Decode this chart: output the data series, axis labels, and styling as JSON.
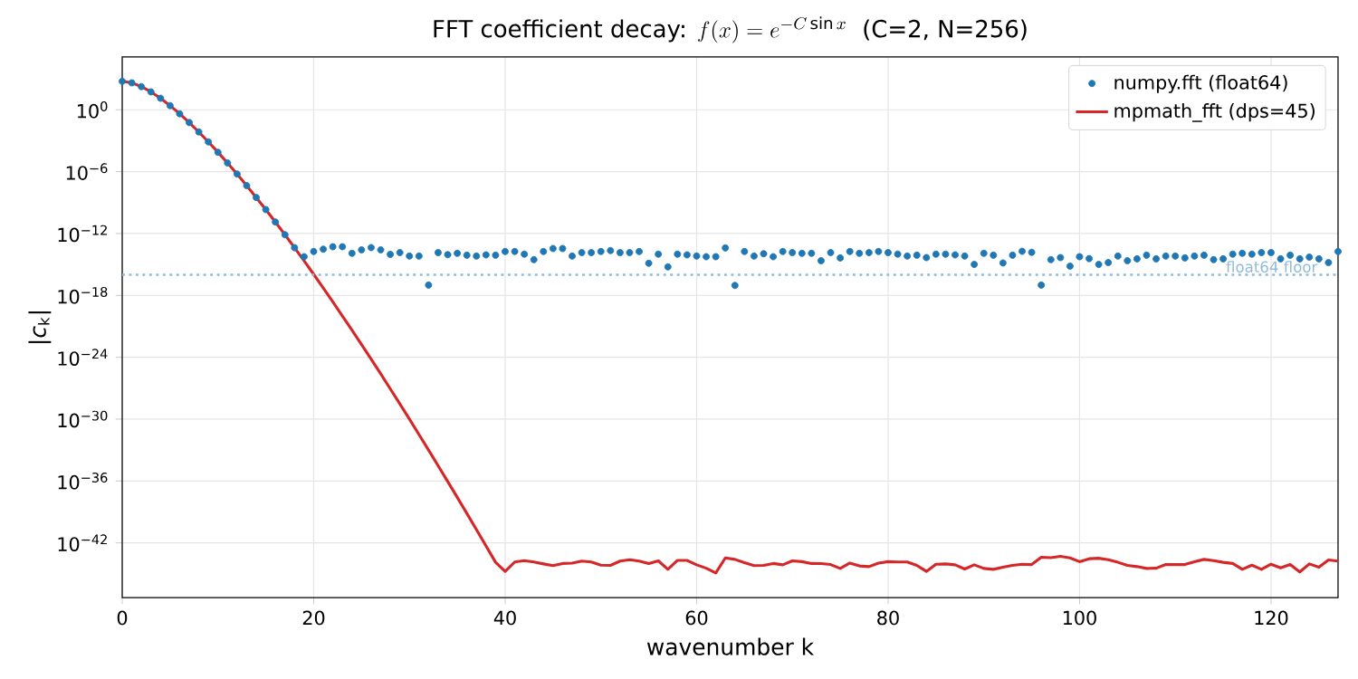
{
  "chart_data": {
    "type": "scatter",
    "title": "\\text{FFT coefficient decay: }f(x)=e^{-C\\sin x}\\text{ \\ (C=2, N=256)}",
    "xlabel": "wavenumber k",
    "ylabel": "|*c*$_{k}$|",
    "x": [
      0,
      1,
      2,
      3,
      4,
      5,
      6,
      7,
      8,
      9,
      10,
      11,
      12,
      13,
      14,
      15,
      16,
      17,
      18,
      19,
      20,
      21,
      22,
      23,
      24,
      25,
      26,
      27,
      28,
      29,
      30,
      31,
      32,
      33,
      34,
      35,
      36,
      37,
      38,
      39,
      40,
      41,
      42,
      43,
      44,
      45,
      46,
      47,
      48,
      49,
      50,
      51,
      52,
      53,
      54,
      55,
      56,
      57,
      58,
      59,
      60,
      61,
      62,
      63,
      64,
      65,
      66,
      67,
      68,
      69,
      70,
      71,
      72,
      73,
      74,
      75,
      76,
      77,
      78,
      79,
      80,
      81,
      82,
      83,
      84,
      85,
      86,
      87,
      88,
      89,
      90,
      91,
      92,
      93,
      94,
      95,
      96,
      97,
      98,
      99,
      100,
      101,
      102,
      103,
      104,
      105,
      106,
      107,
      108,
      109,
      110,
      111,
      112,
      113,
      114,
      115,
      116,
      117,
      118,
      119,
      120,
      121,
      122,
      123,
      124,
      125,
      126,
      127
    ],
    "series": [
      {
        "name": "numpy.fft (float64)",
        "marker": "circle",
        "color": "#1f77b4",
        "values": [
          584,
          407,
          176,
          54.5,
          13.0,
          2.52,
          0.41,
          0.0575,
          0.00707,
          0.00077,
          7.6e-05,
          7e-06,
          5.8e-07,
          4.4e-08,
          3.1e-09,
          2.1e-10,
          1.3e-11,
          7.6e-13,
          4.2e-14,
          5.6e-15,
          1.8e-14,
          3e-14,
          5.2e-14,
          5.2e-14,
          1.2e-14,
          2.6e-14,
          4.3e-14,
          2.6e-14,
          9.5e-15,
          1.4e-14,
          6.5e-15,
          6.5e-15,
          1e-17,
          1.4e-14,
          8.9e-15,
          1.2e-14,
          7.9e-15,
          6.5e-15,
          8.5e-15,
          7.9e-15,
          1.8e-14,
          1.8e-14,
          1e-14,
          2.9e-15,
          1.8e-14,
          3.5e-14,
          3.5e-14,
          6.5e-15,
          1.4e-14,
          1.4e-14,
          1.8e-14,
          2.2e-14,
          1.4e-14,
          1.4e-14,
          1.8e-14,
          1.3e-15,
          1e-14,
          5.8e-16,
          1e-14,
          8.5e-15,
          6.5e-15,
          5.6e-15,
          5.6e-15,
          4e-14,
          9.3e-18,
          1.8e-14,
          6.5e-15,
          1.1e-14,
          5.6e-15,
          1.8e-14,
          1.4e-14,
          1.2e-14,
          1.2e-14,
          2.3e-15,
          1.4e-14,
          4.3e-15,
          1.8e-14,
          1.2e-14,
          1.4e-14,
          1.8e-14,
          1.4e-14,
          1e-14,
          6.5e-15,
          7.9e-15,
          4.6e-15,
          1e-14,
          1e-14,
          8.5e-15,
          6.5e-15,
          1e-15,
          1.2e-14,
          7.9e-15,
          1.4e-15,
          7.9e-15,
          1.9e-14,
          1.5e-14,
          1e-17,
          2.9e-15,
          4.6e-15,
          6.9e-16,
          5.6e-15,
          3.7e-15,
          1e-15,
          1.5e-15,
          6.5e-15,
          2.3e-15,
          3.5e-15,
          7.9e-15,
          3.5e-15,
          6.5e-15,
          6.5e-15,
          4.3e-15,
          6.5e-15,
          7.9e-15,
          2.9e-15,
          3.5e-15,
          1e-14,
          1.2e-14,
          1e-14,
          1.4e-14,
          1.4e-14,
          3.5e-15,
          7.9e-15,
          3.5e-15,
          5.2e-15,
          3.5e-15,
          1.5e-15,
          1.8e-14
        ]
      },
      {
        "name": "mpmath_fft (dps=45)",
        "type": "line",
        "marker": "none",
        "color": "#d62728",
        "values": [
          584,
          407,
          176,
          54.5,
          13.0,
          2.52,
          0.41,
          0.0575,
          0.00707,
          0.00077,
          7.6e-05,
          7e-06,
          5.8e-07,
          4.4e-08,
          3.1e-09,
          2.1e-10,
          1.3e-11,
          7.6e-13,
          4.2e-14,
          2.2e-15,
          1.1e-16,
          5.2e-18,
          2.4e-19,
          1e-20,
          4.3e-22,
          1.7e-23,
          6.6e-25,
          2.5e-26,
          8.7e-28,
          3e-29,
          1e-30,
          3.2e-32,
          1e-33,
          3e-35,
          8.9e-37,
          2.6e-38,
          7.1e-40,
          1.9e-41,
          5e-43,
          1.3e-44,
          1.7e-45,
          1.4e-44,
          1.9e-44,
          1.4e-44,
          9.1e-45,
          6.2e-45,
          1e-44,
          1.1e-44,
          1.7e-44,
          1.4e-44,
          6.9e-45,
          6.5e-45,
          1.7e-44,
          2.3e-44,
          1.7e-44,
          9.8e-45,
          1.8e-44,
          2.7e-45,
          2e-44,
          2e-44,
          7.4e-45,
          3.5e-45,
          1.2e-45,
          3.5e-44,
          2.5e-44,
          1.2e-44,
          6.2e-45,
          6.5e-45,
          1e-44,
          7.4e-45,
          1.8e-44,
          1.5e-44,
          1e-44,
          9.8e-45,
          7.9e-45,
          3.3e-45,
          1.1e-44,
          5.8e-45,
          5e-45,
          1.1e-44,
          1.5e-44,
          1.4e-44,
          1.4e-44,
          6.5e-45,
          1.7e-45,
          8.5e-45,
          9.1e-45,
          7.4e-45,
          2.9e-45,
          7.4e-45,
          3.3e-45,
          2.7e-45,
          4.4e-45,
          6.5e-45,
          8.5e-45,
          7.9e-45,
          4e-44,
          3.7e-44,
          4.9e-44,
          3.5e-44,
          1.5e-44,
          2.9e-44,
          3.2e-44,
          2.3e-44,
          1.3e-44,
          6.5e-45,
          5e-45,
          3.3e-45,
          3.5e-45,
          7.9e-45,
          7.9e-45,
          7.9e-45,
          1.5e-44,
          2.5e-44,
          1.9e-44,
          1.3e-44,
          1e-44,
          2.7e-45,
          6.9e-45,
          2.7e-45,
          8.5e-45,
          3.8e-45,
          7.9e-45,
          1.5e-45,
          9.1e-45,
          4.4e-45,
          2.2e-44,
          1.7e-44
        ]
      }
    ],
    "xlim": [
      0,
      127
    ],
    "xticks": [
      0,
      20,
      40,
      60,
      80,
      100,
      120
    ],
    "ylim": [
      5e-48,
      130000.0
    ],
    "yticks": [
      {
        "value": 1,
        "label": "10$^{0}$"
      },
      {
        "value": 1e-06,
        "label": "10$^{−6}$"
      },
      {
        "value": 1e-12,
        "label": "10$^{−12}$"
      },
      {
        "value": 1e-18,
        "label": "10$^{−18}$"
      },
      {
        "value": 1e-24,
        "label": "10$^{−24}$"
      },
      {
        "value": 1e-30,
        "label": "10$^{−30}$"
      },
      {
        "value": 1e-36,
        "label": "10$^{−36}$"
      },
      {
        "value": 1e-42,
        "label": "10$^{−42}$"
      }
    ],
    "log": "y",
    "grid": true,
    "legend": "top right",
    "ref_lines": [
      {
        "axis": "y",
        "value": 1e-16,
        "label": "float64 floor",
        "color": "#8fbbd9",
        "line_style": "dotted"
      }
    ]
  }
}
